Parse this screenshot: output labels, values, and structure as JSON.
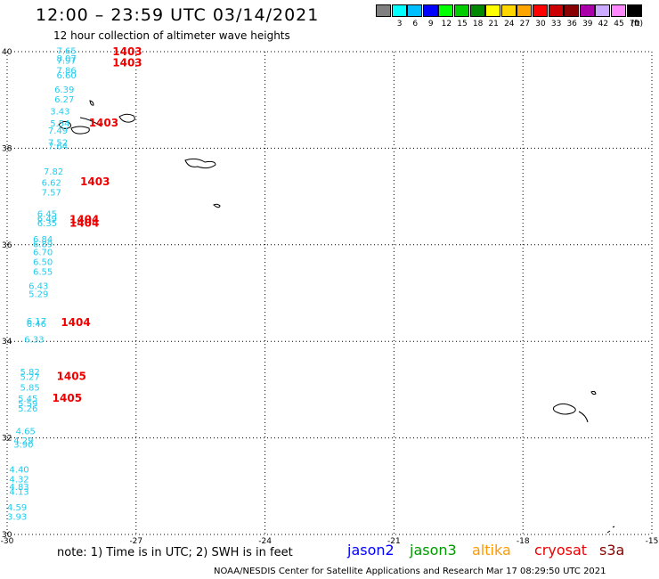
{
  "header": {
    "title": "12:00 – 23:59 UTC 03/14/2021",
    "subtitle": "12 hour collection of altimeter wave heights"
  },
  "legend": {
    "unit": "(ft)",
    "bins": [
      {
        "color": "#808080",
        "label": ""
      },
      {
        "color": "#00ffff",
        "label": "3"
      },
      {
        "color": "#00bfff",
        "label": "6"
      },
      {
        "color": "#0000ff",
        "label": "9"
      },
      {
        "color": "#00ff00",
        "label": "12"
      },
      {
        "color": "#00cc00",
        "label": "15"
      },
      {
        "color": "#008800",
        "label": "18"
      },
      {
        "color": "#ffff00",
        "label": "21"
      },
      {
        "color": "#ffd700",
        "label": "24"
      },
      {
        "color": "#ffa500",
        "label": "27"
      },
      {
        "color": "#ff0000",
        "label": "30"
      },
      {
        "color": "#cc0000",
        "label": "33"
      },
      {
        "color": "#880000",
        "label": "36"
      },
      {
        "color": "#aa00aa",
        "label": "39"
      },
      {
        "color": "#ccaaff",
        "label": "42"
      },
      {
        "color": "#ff88ff",
        "label": "45"
      },
      {
        "color": "#000000",
        "label": "70"
      }
    ]
  },
  "map": {
    "lon_range": [
      -30,
      -15
    ],
    "lat_range": [
      30,
      40
    ],
    "lon_ticks": [
      "-30",
      "-27",
      "-24",
      "-21",
      "-18",
      "-15"
    ],
    "lat_ticks": [
      "40",
      "38",
      "36",
      "34",
      "32",
      "30"
    ],
    "colors": {
      "wave": "#22ccee",
      "time": "#ee0000",
      "land": "#000000",
      "grid": "#000000"
    },
    "wave_heights": [
      {
        "lon": -28.85,
        "lat": 39.95,
        "v": "7.65"
      },
      {
        "lon": -28.85,
        "lat": 39.8,
        "v": "8.07"
      },
      {
        "lon": -28.85,
        "lat": 39.75,
        "v": "7.97"
      },
      {
        "lon": -28.85,
        "lat": 39.55,
        "v": "7.86"
      },
      {
        "lon": -28.85,
        "lat": 39.45,
        "v": "6.60"
      },
      {
        "lon": -28.9,
        "lat": 39.15,
        "v": "6.39"
      },
      {
        "lon": -28.9,
        "lat": 38.95,
        "v": "6.27"
      },
      {
        "lon": -29.0,
        "lat": 38.7,
        "v": "3.43"
      },
      {
        "lon": -29.0,
        "lat": 38.45,
        "v": "5.54"
      },
      {
        "lon": -29.05,
        "lat": 38.3,
        "v": "7.49"
      },
      {
        "lon": -29.05,
        "lat": 38.05,
        "v": "7.52"
      },
      {
        "lon": -29.05,
        "lat": 37.98,
        "v": "7.64"
      },
      {
        "lon": -29.15,
        "lat": 37.45,
        "v": "7.82"
      },
      {
        "lon": -29.2,
        "lat": 37.22,
        "v": "6.62"
      },
      {
        "lon": -29.2,
        "lat": 37.02,
        "v": "7.57"
      },
      {
        "lon": -29.3,
        "lat": 36.58,
        "v": "6.45"
      },
      {
        "lon": -29.3,
        "lat": 36.48,
        "v": "6.49"
      },
      {
        "lon": -29.3,
        "lat": 36.38,
        "v": "6.35"
      },
      {
        "lon": -29.4,
        "lat": 36.05,
        "v": "6.84"
      },
      {
        "lon": -29.4,
        "lat": 35.95,
        "v": "6.89"
      },
      {
        "lon": -29.4,
        "lat": 35.78,
        "v": "6.70"
      },
      {
        "lon": -29.4,
        "lat": 35.58,
        "v": "6.50"
      },
      {
        "lon": -29.4,
        "lat": 35.38,
        "v": "6.55"
      },
      {
        "lon": -29.5,
        "lat": 35.08,
        "v": "6.43"
      },
      {
        "lon": -29.5,
        "lat": 34.92,
        "v": "5.29"
      },
      {
        "lon": -29.55,
        "lat": 34.35,
        "v": "6.17"
      },
      {
        "lon": -29.55,
        "lat": 34.3,
        "v": "6.46"
      },
      {
        "lon": -29.6,
        "lat": 33.98,
        "v": "6.33"
      },
      {
        "lon": -29.7,
        "lat": 33.3,
        "v": "5.82"
      },
      {
        "lon": -29.7,
        "lat": 33.2,
        "v": "5.27"
      },
      {
        "lon": -29.7,
        "lat": 32.98,
        "v": "5.85"
      },
      {
        "lon": -29.75,
        "lat": 32.75,
        "v": "5.45"
      },
      {
        "lon": -29.75,
        "lat": 32.65,
        "v": "5.59"
      },
      {
        "lon": -29.75,
        "lat": 32.55,
        "v": "5.26"
      },
      {
        "lon": -29.8,
        "lat": 32.08,
        "v": "4.65"
      },
      {
        "lon": -29.85,
        "lat": 31.88,
        "v": "4.29"
      },
      {
        "lon": -29.85,
        "lat": 31.8,
        "v": "3.90"
      },
      {
        "lon": -29.95,
        "lat": 31.28,
        "v": "4.40"
      },
      {
        "lon": -29.95,
        "lat": 31.08,
        "v": "4.32"
      },
      {
        "lon": -29.95,
        "lat": 30.92,
        "v": "4.83"
      },
      {
        "lon": -29.95,
        "lat": 30.82,
        "v": "4.13"
      },
      {
        "lon": -30.0,
        "lat": 30.5,
        "v": "4.59"
      },
      {
        "lon": -30.0,
        "lat": 30.3,
        "v": "3.93"
      }
    ],
    "time_labels": [
      {
        "lon": -27.55,
        "lat": 39.93,
        "v": "1403"
      },
      {
        "lon": -27.55,
        "lat": 39.7,
        "v": "1403"
      },
      {
        "lon": -28.1,
        "lat": 38.45,
        "v": "1403"
      },
      {
        "lon": -28.3,
        "lat": 37.23,
        "v": "1403"
      },
      {
        "lon": -28.55,
        "lat": 36.45,
        "v": "1404"
      },
      {
        "lon": -28.55,
        "lat": 36.37,
        "v": "1404"
      },
      {
        "lon": -28.75,
        "lat": 34.32,
        "v": "1404"
      },
      {
        "lon": -28.85,
        "lat": 33.2,
        "v": "1405"
      },
      {
        "lon": -28.95,
        "lat": 32.75,
        "v": "1405"
      }
    ]
  },
  "footer": {
    "note": "note:  1) Time is in UTC; 2) SWH is in feet",
    "satellites": [
      {
        "name": "jason2",
        "color": "#0000ff"
      },
      {
        "name": "jason3",
        "color": "#009900"
      },
      {
        "name": "altika",
        "color": "#ff9900"
      },
      {
        "name": "cryosat",
        "color": "#ee0000"
      },
      {
        "name": "s3a",
        "color": "#880000"
      }
    ],
    "credit": "NOAA/NESDIS Center for Satellite Applications and Research    Mar 17 08:29:50 UTC 2021"
  }
}
